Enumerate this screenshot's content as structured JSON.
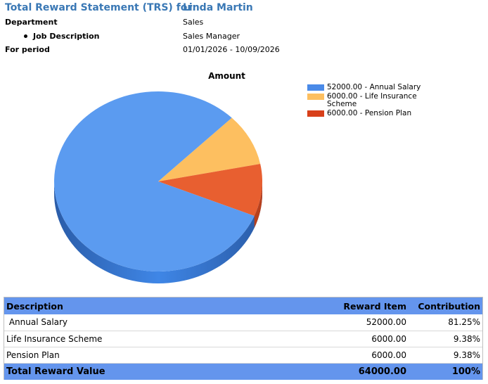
{
  "header": {
    "title": "Total Reward Statement (TRS) for:",
    "employee_name": "Linda Martin"
  },
  "details": {
    "department_label": "Department",
    "department_value": "Sales",
    "job_label": "Job Description",
    "job_value": "Sales Manager",
    "period_label": "For period",
    "period_value": "01/01/2026 - 10/09/2026"
  },
  "chart_data": {
    "type": "pie",
    "title": "Amount",
    "labels": [
      "Annual Salary",
      "Life Insurance Scheme",
      "Pension Plan"
    ],
    "values": [
      52000,
      6000,
      6000
    ],
    "legend": [
      "52000.00 -  Annual Salary",
      "6000.00 - Life Insurance Scheme",
      "6000.00 - Pension Plan"
    ],
    "colors": [
      "#5b9bf0",
      "#fdbf60",
      "#e85f30"
    ],
    "legend_colors": [
      "#4a8ae8",
      "#fdbf60",
      "#d8401a"
    ],
    "legend_position": "right"
  },
  "table": {
    "headers": [
      "Description",
      "Reward Item",
      "Contribution"
    ],
    "rows": [
      {
        "description": " Annual Salary",
        "amount": "52000.00",
        "contribution": "81.25%"
      },
      {
        "description": "Life Insurance Scheme",
        "amount": "6000.00",
        "contribution": "9.38%"
      },
      {
        "description": "Pension Plan",
        "amount": "6000.00",
        "contribution": "9.38%"
      }
    ],
    "total": {
      "label": "Total Reward Value",
      "amount": "64000.00",
      "contribution": "100%"
    }
  }
}
